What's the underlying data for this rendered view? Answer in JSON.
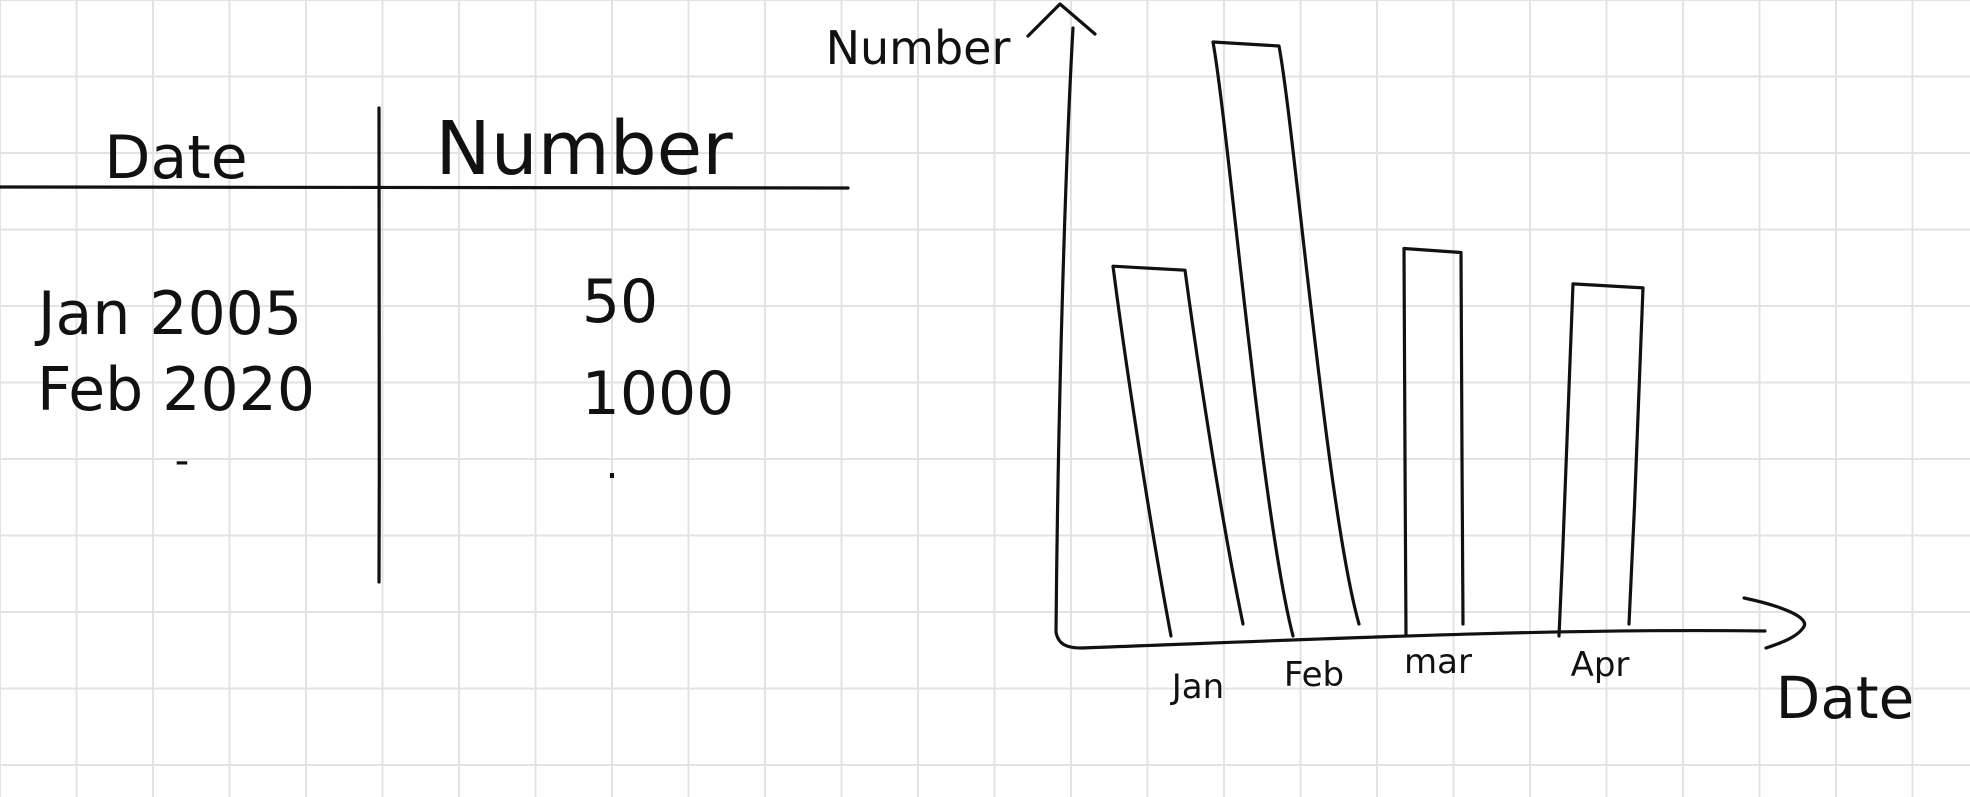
{
  "table": {
    "headers": [
      "Date",
      "Number"
    ],
    "rows": [
      [
        "Jan 2005",
        "50"
      ],
      [
        "Feb 2020",
        "1000"
      ],
      [
        "-",
        "."
      ]
    ]
  },
  "chart_data": {
    "type": "bar",
    "xlabel": "Date",
    "ylabel": "Number",
    "categories": [
      "Jan",
      "Feb",
      "mar",
      "Apr"
    ],
    "series": [
      {
        "values": [
          62,
          100,
          65,
          59
        ]
      }
    ],
    "ylim": [
      0,
      100
    ],
    "grid": false,
    "legend": "none"
  }
}
